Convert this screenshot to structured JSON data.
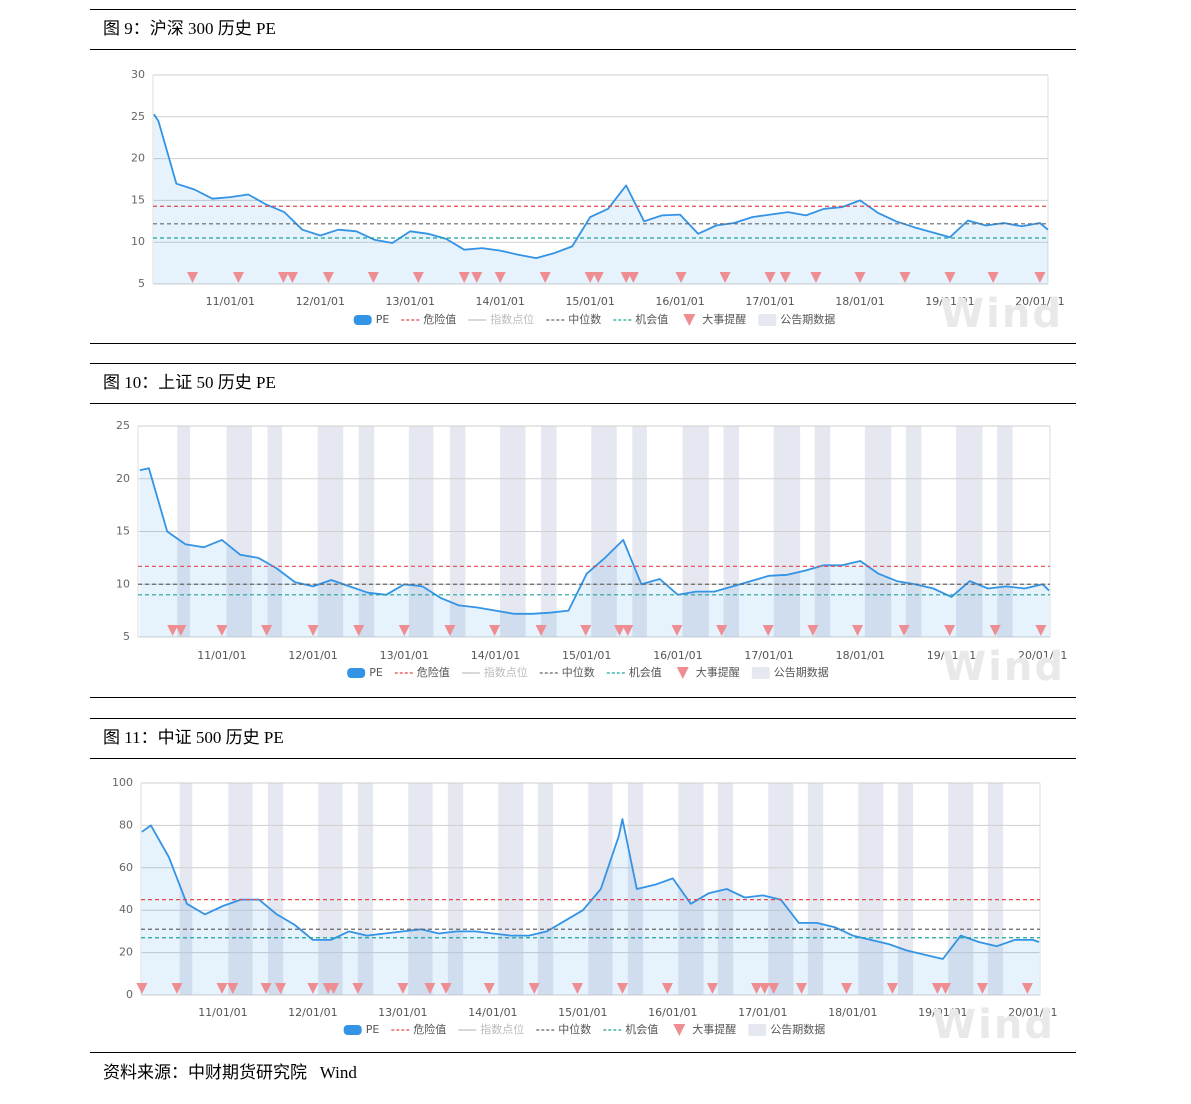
{
  "chart_data": [
    {
      "type": "line",
      "title": "图 9：沪深 300 历史 PE",
      "x": [
        2010.15,
        2010.2,
        2010.4,
        2010.6,
        2010.8,
        2011,
        2011.2,
        2011.4,
        2011.6,
        2011.8,
        2012,
        2012.2,
        2012.4,
        2012.6,
        2012.8,
        2013,
        2013.2,
        2013.4,
        2013.6,
        2013.8,
        2014,
        2014.2,
        2014.4,
        2014.6,
        2014.8,
        2015,
        2015.2,
        2015.4,
        2015.6,
        2015.8,
        2016,
        2016.2,
        2016.4,
        2016.6,
        2016.8,
        2017,
        2017.2,
        2017.4,
        2017.6,
        2017.8,
        2018,
        2018.2,
        2018.4,
        2018.6,
        2018.8,
        2019,
        2019.2,
        2019.4,
        2019.6,
        2019.8,
        2020,
        2020.09
      ],
      "series": [
        {
          "name": "PE",
          "color": "#3393e5",
          "values": [
            25.3,
            24.5,
            17,
            16.3,
            15.2,
            15.4,
            15.7,
            14.5,
            13.6,
            11.5,
            10.8,
            11.5,
            11.3,
            10.3,
            9.9,
            11.3,
            11,
            10.4,
            9.1,
            9.3,
            9.0,
            8.5,
            8.1,
            8.7,
            9.5,
            13,
            14,
            16.8,
            12.5,
            13.2,
            13.3,
            11,
            12,
            12.3,
            13,
            13.3,
            13.6,
            13.2,
            14,
            14.2,
            15,
            13.5,
            12.5,
            11.8,
            11.2,
            10.6,
            12.6,
            12,
            12.3,
            11.9,
            12.3,
            11.5
          ]
        }
      ],
      "lines": [
        {
          "name": "危险值",
          "color": "#e5484d",
          "value": 14.3
        },
        {
          "name": "中位数",
          "color": "#666666",
          "value": 12.2
        },
        {
          "name": "机会值",
          "color": "#1fa39c",
          "value": 10.5
        }
      ],
      "disabled_series": {
        "name": "指数点位",
        "color": "#cccccc"
      },
      "events": {
        "name": "大事提醒",
        "color": "#ee8d92",
        "x": [
          2010.58,
          2011.09,
          2011.59,
          2011.69,
          2012.09,
          2012.59,
          2013.09,
          2013.6,
          2013.74,
          2014.0,
          2014.5,
          2015.0,
          2015.09,
          2015.4,
          2015.48,
          2016.01,
          2016.5,
          2017.0,
          2017.17,
          2017.51,
          2018.0,
          2018.5,
          2019.0,
          2019.48,
          2020.0
        ]
      },
      "bands": {
        "name": "公告期数据",
        "color": "#e6e8f1",
        "ranges": []
      },
      "xlim": [
        2010.14,
        2020.09
      ],
      "xticks": [
        {
          "value": 2011,
          "label": "11/01/01"
        },
        {
          "value": 2012,
          "label": "12/01/01"
        },
        {
          "value": 2013,
          "label": "13/01/01"
        },
        {
          "value": 2014,
          "label": "14/01/01"
        },
        {
          "value": 2015,
          "label": "15/01/01"
        },
        {
          "value": 2016,
          "label": "16/01/01"
        },
        {
          "value": 2017,
          "label": "17/01/01"
        },
        {
          "value": 2018,
          "label": "18/01/01"
        },
        {
          "value": 2019,
          "label": "19/01/01"
        },
        {
          "value": 2020,
          "label": "20/01/01"
        }
      ],
      "ylim": [
        5,
        30
      ],
      "yticks": [
        5,
        10,
        15,
        20,
        25,
        30
      ],
      "grid": true,
      "watermark": "Wind"
    },
    {
      "type": "line",
      "title": "图 10：上证 50 历史 PE",
      "x": [
        2010.1,
        2010.2,
        2010.4,
        2010.6,
        2010.8,
        2011,
        2011.2,
        2011.4,
        2011.6,
        2011.8,
        2012,
        2012.2,
        2012.4,
        2012.6,
        2012.8,
        2013,
        2013.2,
        2013.4,
        2013.6,
        2013.8,
        2014,
        2014.2,
        2014.4,
        2014.6,
        2014.8,
        2015,
        2015.2,
        2015.4,
        2015.6,
        2015.8,
        2016,
        2016.2,
        2016.4,
        2016.6,
        2016.8,
        2017,
        2017.2,
        2017.4,
        2017.6,
        2017.8,
        2018,
        2018.2,
        2018.4,
        2018.6,
        2018.8,
        2019,
        2019.2,
        2019.4,
        2019.6,
        2019.8,
        2020,
        2020.07
      ],
      "series": [
        {
          "name": "PE",
          "color": "#3393e5",
          "values": [
            20.8,
            21,
            15,
            13.8,
            13.5,
            14.2,
            12.8,
            12.5,
            11.5,
            10.2,
            9.8,
            10.4,
            9.8,
            9.2,
            9,
            10,
            9.8,
            8.7,
            8,
            7.8,
            7.5,
            7.2,
            7.2,
            7.3,
            7.5,
            11,
            12.5,
            14.2,
            10,
            10.5,
            9,
            9.3,
            9.3,
            9.8,
            10.3,
            10.8,
            10.9,
            11.3,
            11.8,
            11.8,
            12.2,
            11,
            10.3,
            10,
            9.6,
            8.8,
            10.3,
            9.6,
            9.8,
            9.6,
            10,
            9.4
          ]
        }
      ],
      "lines": [
        {
          "name": "危险值",
          "color": "#e5484d",
          "value": 11.7
        },
        {
          "name": "中位数",
          "color": "#666666",
          "value": 10
        },
        {
          "name": "机会值",
          "color": "#1fa39c",
          "value": 9
        }
      ],
      "disabled_series": {
        "name": "指数点位",
        "color": "#cccccc"
      },
      "events": {
        "name": "大事提醒",
        "color": "#ee8d92",
        "x": [
          2010.46,
          2010.55,
          2011.0,
          2011.49,
          2012.0,
          2012.5,
          2013.0,
          2013.5,
          2013.99,
          2014.5,
          2014.99,
          2015.36,
          2015.45,
          2015.99,
          2016.48,
          2016.99,
          2017.48,
          2017.97,
          2018.48,
          2018.98,
          2019.48,
          2019.98
        ]
      },
      "bands": {
        "name": "公告期数据",
        "color": "#e6e8f1",
        "ranges": [
          [
            2010.51,
            2010.65
          ],
          [
            2011.05,
            2011.33
          ],
          [
            2011.5,
            2011.66
          ],
          [
            2012.05,
            2012.33
          ],
          [
            2012.5,
            2012.67
          ],
          [
            2013.05,
            2013.32
          ],
          [
            2013.5,
            2013.67
          ],
          [
            2014.05,
            2014.33
          ],
          [
            2014.5,
            2014.67
          ],
          [
            2015.05,
            2015.33
          ],
          [
            2015.5,
            2015.66
          ],
          [
            2016.05,
            2016.34
          ],
          [
            2016.5,
            2016.67
          ],
          [
            2017.05,
            2017.34
          ],
          [
            2017.5,
            2017.67
          ],
          [
            2018.05,
            2018.34
          ],
          [
            2018.5,
            2018.67
          ],
          [
            2019.05,
            2019.34
          ],
          [
            2019.5,
            2019.67
          ]
        ]
      },
      "xlim": [
        2010.08,
        2020.08
      ],
      "xticks": [
        {
          "value": 2011,
          "label": "11/01/01"
        },
        {
          "value": 2012,
          "label": "12/01/01"
        },
        {
          "value": 2013,
          "label": "13/01/01"
        },
        {
          "value": 2014,
          "label": "14/01/01"
        },
        {
          "value": 2015,
          "label": "15/01/01"
        },
        {
          "value": 2016,
          "label": "16/01/01"
        },
        {
          "value": 2017,
          "label": "17/01/01"
        },
        {
          "value": 2018,
          "label": "18/01/01"
        },
        {
          "value": 2019,
          "label": "19/01/01"
        },
        {
          "value": 2020,
          "label": "20/01/01"
        }
      ],
      "ylim": [
        5,
        25
      ],
      "yticks": [
        5,
        10,
        15,
        20,
        25
      ],
      "grid": true,
      "watermark": "Wind"
    },
    {
      "type": "line",
      "title": "图 11：中证 500 历史 PE",
      "x": [
        2010.1,
        2010.2,
        2010.4,
        2010.6,
        2010.8,
        2011,
        2011.2,
        2011.4,
        2011.6,
        2011.8,
        2012,
        2012.2,
        2012.4,
        2012.6,
        2012.8,
        2013,
        2013.2,
        2013.4,
        2013.6,
        2013.8,
        2014,
        2014.2,
        2014.4,
        2014.6,
        2014.8,
        2015,
        2015.2,
        2015.4,
        2015.44,
        2015.6,
        2015.8,
        2016,
        2016.2,
        2016.4,
        2016.6,
        2016.8,
        2017,
        2017.2,
        2017.4,
        2017.6,
        2017.8,
        2018,
        2018.2,
        2018.4,
        2018.6,
        2018.8,
        2019,
        2019.2,
        2019.4,
        2019.6,
        2019.8,
        2020,
        2020.07
      ],
      "series": [
        {
          "name": "PE",
          "color": "#3393e5",
          "values": [
            77,
            80,
            65,
            43,
            38,
            42,
            45,
            45,
            38,
            33,
            26,
            26,
            30,
            28,
            29,
            30,
            31,
            29,
            30,
            30,
            29,
            28,
            28,
            30,
            35,
            40,
            50,
            75,
            83,
            50,
            52,
            55,
            43,
            48,
            50,
            46,
            47,
            45,
            34,
            34,
            32,
            28,
            26,
            24,
            21,
            19,
            17,
            28,
            25,
            23,
            26,
            26,
            25
          ]
        }
      ],
      "lines": [
        {
          "name": "危险值",
          "color": "#e5484d",
          "value": 45
        },
        {
          "name": "中位数",
          "color": "#666666",
          "value": 31
        },
        {
          "name": "机会值",
          "color": "#1fa39c",
          "value": 27
        }
      ],
      "disabled_series": {
        "name": "指数点位",
        "color": "#cccccc"
      },
      "events": {
        "name": "大事提醒",
        "color": "#ee8d92",
        "x": [
          2010.1,
          2010.49,
          2010.99,
          2011.11,
          2011.48,
          2011.64,
          2012.0,
          2012.17,
          2012.23,
          2012.5,
          2013.0,
          2013.3,
          2013.48,
          2013.96,
          2014.46,
          2014.94,
          2015.44,
          2015.94,
          2016.44,
          2016.93,
          2017.02,
          2017.12,
          2017.43,
          2017.93,
          2018.44,
          2018.94,
          2019.03,
          2019.44,
          2019.94
        ]
      },
      "bands": {
        "name": "公告期数据",
        "color": "#e6e8f1",
        "ranges": [
          [
            2010.52,
            2010.66
          ],
          [
            2011.06,
            2011.33
          ],
          [
            2011.5,
            2011.67
          ],
          [
            2012.06,
            2012.33
          ],
          [
            2012.5,
            2012.67
          ],
          [
            2013.06,
            2013.33
          ],
          [
            2013.5,
            2013.67
          ],
          [
            2014.06,
            2014.34
          ],
          [
            2014.5,
            2014.67
          ],
          [
            2015.06,
            2015.33
          ],
          [
            2015.5,
            2015.67
          ],
          [
            2016.06,
            2016.34
          ],
          [
            2016.5,
            2016.67
          ],
          [
            2017.06,
            2017.34
          ],
          [
            2017.5,
            2017.67
          ],
          [
            2018.06,
            2018.34
          ],
          [
            2018.5,
            2018.67
          ],
          [
            2019.06,
            2019.34
          ],
          [
            2019.5,
            2019.67
          ]
        ]
      },
      "xlim": [
        2010.09,
        2020.08
      ],
      "xticks": [
        {
          "value": 2011,
          "label": "11/01/01"
        },
        {
          "value": 2012,
          "label": "12/01/01"
        },
        {
          "value": 2013,
          "label": "13/01/01"
        },
        {
          "value": 2014,
          "label": "14/01/01"
        },
        {
          "value": 2015,
          "label": "15/01/01"
        },
        {
          "value": 2016,
          "label": "16/01/01"
        },
        {
          "value": 2017,
          "label": "17/01/01"
        },
        {
          "value": 2018,
          "label": "18/01/01"
        },
        {
          "value": 2019,
          "label": "19/01/01"
        },
        {
          "value": 2020,
          "label": "20/01/01"
        }
      ],
      "ylim": [
        0,
        100
      ],
      "yticks": [
        0,
        20,
        40,
        60,
        80,
        100
      ],
      "grid": true,
      "watermark": "Wind"
    }
  ],
  "source": "资料来源：中财期货研究院   Wind"
}
